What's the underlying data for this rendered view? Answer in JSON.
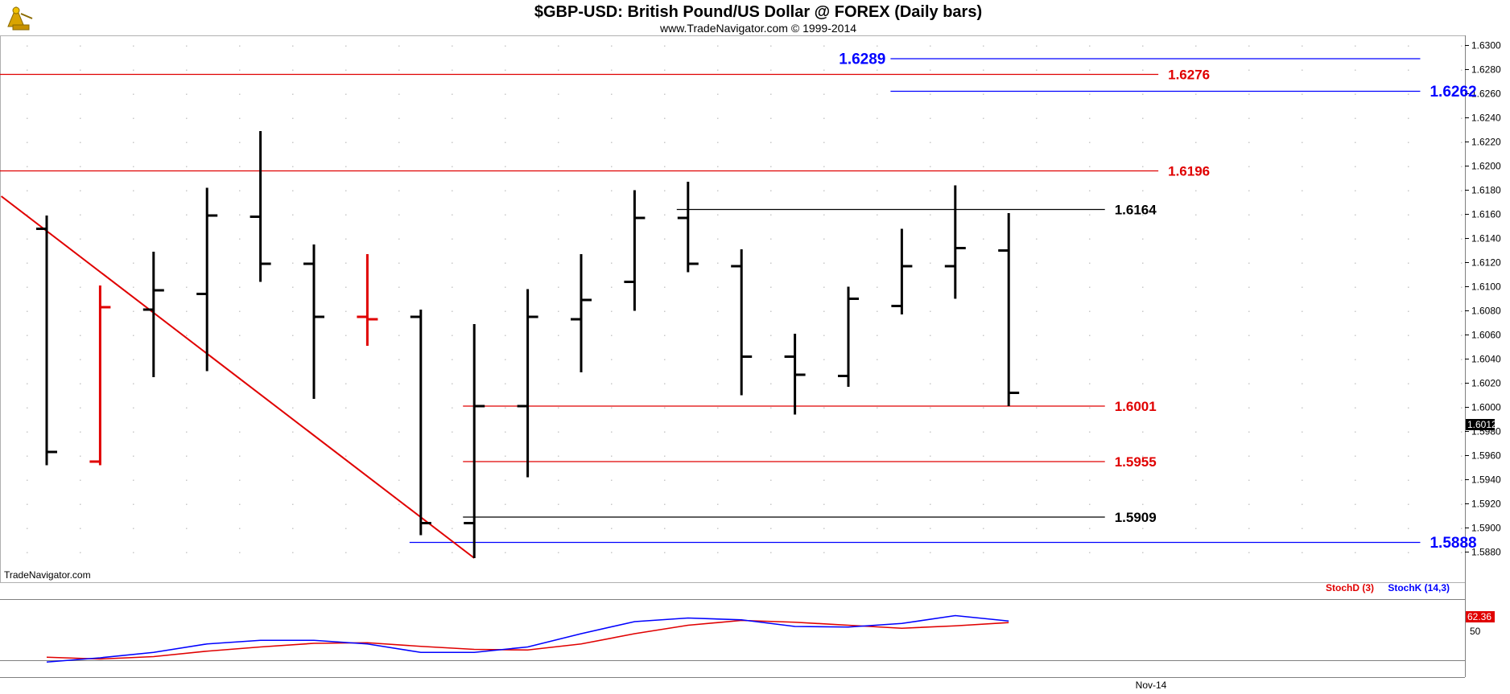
{
  "header": {
    "title": "$GBP-USD:  British Pound/US Dollar @ FOREX  (Daily bars)",
    "subtitle": "www.TradeNavigator.com © 1999-2014",
    "logo_icon": "sextant-logo-icon"
  },
  "watermark": "TradeNavigator.com",
  "colors": {
    "up_bar": "#000000",
    "highlight_bar": "#e00000",
    "red_level": "#e00000",
    "blue_level": "#0000ff",
    "black_level": "#000000",
    "trendline": "#e00000",
    "stoch_d": "#e00000",
    "stoch_k": "#0000ff",
    "grid_dot": "#c8c8c8"
  },
  "chart_data": [
    {
      "type": "ohlc",
      "title": "$GBP-USD:  British Pound/US Dollar @ FOREX  (Daily bars)",
      "ylim": [
        1.5865,
        1.6305
      ],
      "y_ticks": [
        "1.6300",
        "1.6280",
        "1.6260",
        "1.6240",
        "1.6220",
        "1.6200",
        "1.6180",
        "1.6160",
        "1.6140",
        "1.6120",
        "1.6100",
        "1.6080",
        "1.6060",
        "1.6040",
        "1.6020",
        "1.6000",
        "1.5980",
        "1.5960",
        "1.5940",
        "1.5920",
        "1.5900",
        "1.5880"
      ],
      "y_tick_values": [
        1.63,
        1.628,
        1.626,
        1.624,
        1.622,
        1.62,
        1.618,
        1.616,
        1.614,
        1.612,
        1.61,
        1.608,
        1.606,
        1.604,
        1.602,
        1.6,
        1.598,
        1.596,
        1.594,
        1.592,
        1.59,
        1.588
      ],
      "x_label": "Nov-14",
      "grid": true,
      "last_price": "1.6012",
      "last_price_value": 1.6012,
      "bars": [
        {
          "o": 1.6148,
          "h": 1.6159,
          "l": 1.5952,
          "c": 1.5963,
          "color": "black"
        },
        {
          "o": 1.5955,
          "h": 1.6101,
          "l": 1.5952,
          "c": 1.6083,
          "color": "red"
        },
        {
          "o": 1.6081,
          "h": 1.6129,
          "l": 1.6025,
          "c": 1.6097,
          "color": "black"
        },
        {
          "o": 1.6094,
          "h": 1.6182,
          "l": 1.603,
          "c": 1.6159,
          "color": "black"
        },
        {
          "o": 1.6158,
          "h": 1.6229,
          "l": 1.6104,
          "c": 1.6119,
          "color": "black"
        },
        {
          "o": 1.6119,
          "h": 1.6135,
          "l": 1.6007,
          "c": 1.6075,
          "color": "black"
        },
        {
          "o": 1.6075,
          "h": 1.6127,
          "l": 1.6051,
          "c": 1.6073,
          "color": "red"
        },
        {
          "o": 1.6075,
          "h": 1.6081,
          "l": 1.5894,
          "c": 1.5904,
          "color": "black"
        },
        {
          "o": 1.5904,
          "h": 1.6069,
          "l": 1.5875,
          "c": 1.6001,
          "color": "black"
        },
        {
          "o": 1.6001,
          "h": 1.6098,
          "l": 1.5942,
          "c": 1.6075,
          "color": "black"
        },
        {
          "o": 1.6073,
          "h": 1.6127,
          "l": 1.6029,
          "c": 1.6089,
          "color": "black"
        },
        {
          "o": 1.6104,
          "h": 1.618,
          "l": 1.608,
          "c": 1.6157,
          "color": "black"
        },
        {
          "o": 1.6157,
          "h": 1.6187,
          "l": 1.6112,
          "c": 1.6119,
          "color": "black"
        },
        {
          "o": 1.6117,
          "h": 1.6131,
          "l": 1.601,
          "c": 1.6042,
          "color": "black"
        },
        {
          "o": 1.6042,
          "h": 1.6061,
          "l": 1.5994,
          "c": 1.6027,
          "color": "black"
        },
        {
          "o": 1.6026,
          "h": 1.61,
          "l": 1.6017,
          "c": 1.609,
          "color": "black"
        },
        {
          "o": 1.6084,
          "h": 1.6148,
          "l": 1.6077,
          "c": 1.6117,
          "color": "black"
        },
        {
          "o": 1.6117,
          "h": 1.6184,
          "l": 1.609,
          "c": 1.6132,
          "color": "black"
        },
        {
          "o": 1.613,
          "h": 1.6161,
          "l": 1.6001,
          "c": 1.6012,
          "color": "black"
        }
      ],
      "levels": [
        {
          "value": 1.6289,
          "label": "1.6289",
          "color": "blue",
          "from_bar": 16,
          "to_bar": 25.7,
          "label_pos": "left"
        },
        {
          "value": 1.6276,
          "label": "1.6276",
          "color": "red",
          "from_bar": -1,
          "to_bar": 20.8,
          "label_pos": "right"
        },
        {
          "value": 1.6262,
          "label": "1.6262",
          "color": "blue",
          "from_bar": 16,
          "to_bar": 25.7,
          "label_pos": "right"
        },
        {
          "value": 1.6196,
          "label": "1.6196",
          "color": "red",
          "from_bar": -1,
          "to_bar": 20.8,
          "label_pos": "right"
        },
        {
          "value": 1.6164,
          "label": "1.6164",
          "color": "black",
          "from_bar": 12,
          "to_bar": 19.8,
          "label_pos": "right"
        },
        {
          "value": 1.6001,
          "label": "1.6001",
          "color": "red",
          "from_bar": 8,
          "to_bar": 19.8,
          "label_pos": "right"
        },
        {
          "value": 1.5955,
          "label": "1.5955",
          "color": "red",
          "from_bar": 8,
          "to_bar": 19.8,
          "label_pos": "right"
        },
        {
          "value": 1.5909,
          "label": "1.5909",
          "color": "black",
          "from_bar": 8,
          "to_bar": 19.8,
          "label_pos": "right"
        },
        {
          "value": 1.5888,
          "label": "1.5888",
          "color": "blue",
          "from_bar": 7,
          "to_bar": 25.7,
          "label_pos": "right"
        }
      ],
      "trendline": {
        "from": {
          "bar": -0.85,
          "value": 1.6175
        },
        "to": {
          "bar": 8,
          "value": 1.5875
        }
      }
    },
    {
      "type": "line",
      "title": "",
      "legend": [
        {
          "name": "StochD (3)",
          "color": "red"
        },
        {
          "name": "StochK (14,3)",
          "color": "blue"
        }
      ],
      "legend_position": "top-right",
      "ylim": [
        0,
        100
      ],
      "y_ticks": [
        "50"
      ],
      "y_tick_values": [
        50
      ],
      "last_value_label": "62.36",
      "last_value": 62.36,
      "series": [
        {
          "name": "StochD (3)",
          "color": "red",
          "values": [
            5,
            2,
            6,
            15,
            22,
            28,
            29,
            23,
            18,
            17,
            27,
            44,
            58,
            66,
            63,
            58,
            53,
            57,
            62.36
          ]
        },
        {
          "name": "StochK (14,3)",
          "color": "blue",
          "values": [
            -3,
            4,
            13,
            27,
            33,
            33,
            27,
            13,
            13,
            22,
            44,
            64,
            70,
            67,
            56,
            55,
            61,
            74,
            65
          ]
        }
      ]
    }
  ]
}
